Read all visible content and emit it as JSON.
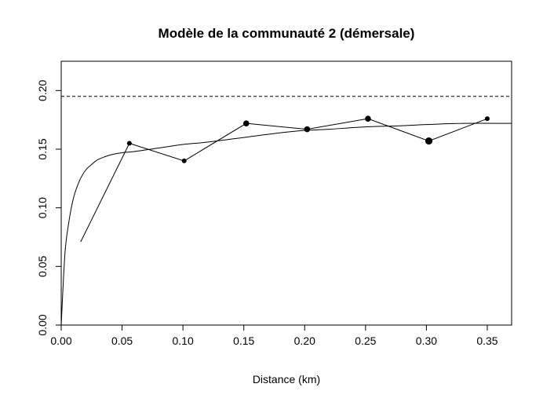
{
  "chart_data": {
    "type": "scatter",
    "title": "Modèle de la communauté 2 (démersale)",
    "xlabel": "Distance (km)",
    "ylabel": "",
    "xlim": [
      0,
      0.37
    ],
    "ylim": [
      0,
      0.225
    ],
    "x_ticks": [
      "0.00",
      "0.05",
      "0.10",
      "0.15",
      "0.20",
      "0.25",
      "0.30",
      "0.35"
    ],
    "x_tick_values": [
      0,
      0.05,
      0.1,
      0.15,
      0.2,
      0.25,
      0.3,
      0.35
    ],
    "y_ticks": [
      "0.00",
      "0.05",
      "0.10",
      "0.15",
      "0.20"
    ],
    "y_tick_values": [
      0,
      0.05,
      0.1,
      0.15,
      0.2
    ],
    "series": [
      {
        "kind": "empirical-points",
        "x": [
          0.016,
          0.056,
          0.101,
          0.152,
          0.202,
          0.252,
          0.302,
          0.35
        ],
        "y": [
          0.071,
          0.155,
          0.14,
          0.172,
          0.167,
          0.176,
          0.157,
          0.176
        ],
        "point_weight": [
          0,
          1,
          1,
          2,
          2,
          2,
          3,
          1
        ]
      },
      {
        "kind": "fitted-model-curve",
        "x": [
          0,
          0.003,
          0.006,
          0.01,
          0.015,
          0.02,
          0.025,
          0.03,
          0.04,
          0.05,
          0.06,
          0.08,
          0.1,
          0.12,
          0.15,
          0.18,
          0.2,
          0.22,
          0.25,
          0.28,
          0.3,
          0.33,
          0.37
        ],
        "y": [
          0,
          0.06,
          0.086,
          0.108,
          0.123,
          0.132,
          0.137,
          0.141,
          0.145,
          0.147,
          0.148,
          0.151,
          0.154,
          0.156,
          0.16,
          0.164,
          0.166,
          0.167,
          0.169,
          0.17,
          0.171,
          0.172,
          0.172
        ]
      },
      {
        "kind": "sill-reference-line",
        "y": 0.195
      }
    ],
    "grid": false,
    "legend": "none",
    "colors": {
      "line": "#000000",
      "background": "#ffffff"
    }
  }
}
